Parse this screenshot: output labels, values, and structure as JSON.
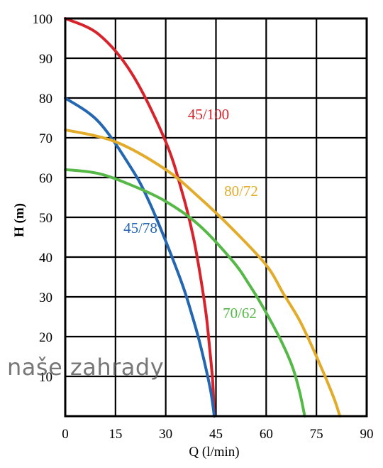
{
  "chart_data": {
    "type": "line",
    "xlabel": "Q (l/min)",
    "ylabel": "H (m)",
    "xlim": [
      0,
      90
    ],
    "ylim": [
      0,
      100
    ],
    "xticks": [
      0,
      15,
      30,
      45,
      60,
      75,
      90
    ],
    "yticks": [
      10,
      20,
      30,
      40,
      50,
      60,
      70,
      80,
      90,
      100
    ],
    "grid": true,
    "series": [
      {
        "name": "45/100",
        "color": "#d7232b",
        "x": [
          0,
          10,
          20,
          30,
          35,
          38,
          40,
          42,
          43,
          44,
          44.5
        ],
        "y": [
          100,
          96,
          86,
          69,
          56,
          46,
          37,
          26,
          18,
          9,
          0
        ]
      },
      {
        "name": "45/78",
        "color": "#2366b1",
        "x": [
          0,
          10,
          20,
          25,
          30,
          35,
          38,
          40,
          42,
          43.5,
          44.5
        ],
        "y": [
          80,
          74,
          62,
          54,
          44,
          33,
          25,
          19,
          12,
          6,
          0
        ]
      },
      {
        "name": "80/72",
        "color": "#e2ab2a",
        "x": [
          0,
          15,
          30,
          40,
          50,
          60,
          65,
          70,
          75,
          80,
          82
        ],
        "y": [
          72,
          69,
          62,
          55,
          47,
          38,
          31,
          24,
          15,
          5,
          0
        ]
      },
      {
        "name": "70/62",
        "color": "#55b847",
        "x": [
          0,
          10,
          20,
          30,
          40,
          50,
          55,
          60,
          65,
          68,
          70,
          71.5
        ],
        "y": [
          62,
          61,
          58,
          54,
          48,
          39,
          33,
          26,
          18,
          12,
          6,
          0
        ]
      }
    ]
  },
  "watermark": "naše zahrady"
}
